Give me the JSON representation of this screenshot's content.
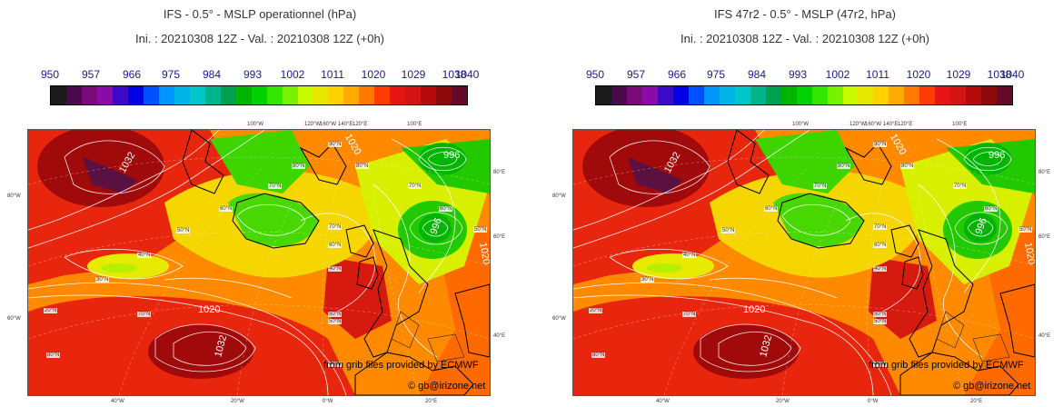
{
  "panels": [
    {
      "title": "IFS - 0.5° - MSLP operationnel (hPa)",
      "subtitle": "Ini. : 20210308 12Z - Val. : 20210308 12Z (+0h)"
    },
    {
      "title": "IFS 47r2 - 0.5° - MSLP (47r2, hPa)",
      "subtitle": "Ini. : 20210308 12Z - Val. : 20210308 12Z (+0h)"
    }
  ],
  "colorbar": {
    "labels": [
      "950",
      "957",
      "966",
      "975",
      "984",
      "993",
      "1002",
      "1011",
      "1020",
      "1029",
      "1038",
      "1040"
    ],
    "colors": [
      "#1a1a1a",
      "#4b0a4b",
      "#7a0a7a",
      "#8c0aa8",
      "#3c0ac8",
      "#0000e6",
      "#0050ff",
      "#0096ff",
      "#00b4e6",
      "#00c8c8",
      "#00b48c",
      "#00a050",
      "#00b400",
      "#00d200",
      "#32e600",
      "#78f000",
      "#c8fa00",
      "#e6e600",
      "#ffd200",
      "#ffaa00",
      "#ff7800",
      "#ff3c00",
      "#e61414",
      "#d21414",
      "#b40a0a",
      "#8c0a0a",
      "#640a28"
    ]
  },
  "map": {
    "contour_labels": [
      "1032",
      "1020",
      "1032",
      "996",
      "996",
      "1020",
      "1020"
    ],
    "lat_labels": [
      "90°N",
      "80°N",
      "80°N",
      "70°N",
      "70°N",
      "60°N",
      "60°N",
      "70°N",
      "50°N",
      "50°N",
      "50°N",
      "40°N",
      "40°N",
      "30°N",
      "20°N",
      "60°N",
      "50°N",
      "40°N",
      "80°N",
      "70°N"
    ],
    "top_lon_labels": [
      "100°W",
      "120°W",
      "160°W",
      "140°E",
      "120°E",
      "100°E"
    ],
    "left_labels": [
      "80°W",
      "60°W"
    ],
    "right_labels": [
      "80°E",
      "60°E",
      "40°E"
    ],
    "bottom_lon_labels": [
      "40°W",
      "20°W",
      "0°W",
      "20°E"
    ],
    "credit_source": "from grib files provided by ECMWF",
    "credit_site": "© gb@irizone.net"
  }
}
